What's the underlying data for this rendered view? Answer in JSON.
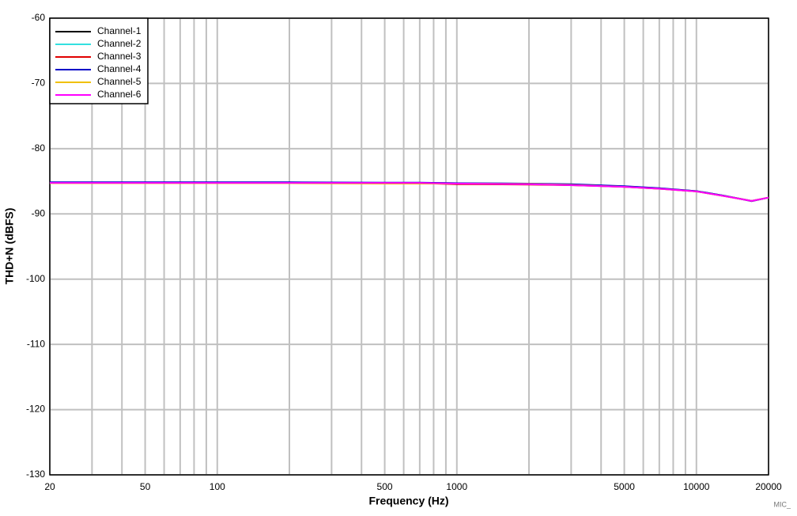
{
  "chart_data": {
    "type": "line",
    "xlabel": "Frequency (Hz)",
    "ylabel": "THD+N (dBFS)",
    "watermark": "MIC_",
    "xscale": "log",
    "xlim": [
      20,
      20000
    ],
    "ylim": [
      -130,
      -60
    ],
    "xticks": [
      20,
      50,
      100,
      500,
      1000,
      5000,
      10000,
      20000
    ],
    "xminor": [
      30,
      40,
      60,
      70,
      80,
      90,
      200,
      300,
      400,
      600,
      700,
      800,
      900,
      2000,
      3000,
      4000,
      6000,
      7000,
      8000,
      9000
    ],
    "yticks": [
      -130,
      -120,
      -110,
      -100,
      -90,
      -80,
      -70,
      -60
    ],
    "grid": true,
    "legend": "upper left",
    "x": [
      20,
      50,
      100,
      200,
      500,
      700,
      1000,
      2000,
      3000,
      5000,
      7000,
      10000,
      13000,
      17000,
      20000
    ],
    "series": [
      {
        "name": "Channel-1",
        "color": "#000000",
        "values": [
          -85.25,
          -85.25,
          -85.25,
          -85.25,
          -85.25,
          -85.25,
          -85.3,
          -85.4,
          -85.5,
          -85.8,
          -86.1,
          -86.5,
          -87.2,
          -88.0,
          -87.5
        ]
      },
      {
        "name": "Channel-2",
        "color": "#33e0e0",
        "values": [
          -85.25,
          -85.25,
          -85.25,
          -85.25,
          -85.25,
          -85.25,
          -85.3,
          -85.35,
          -85.5,
          -85.8,
          -86.1,
          -86.5,
          -87.2,
          -88.0,
          -87.5
        ]
      },
      {
        "name": "Channel-3",
        "color": "#e00000",
        "values": [
          -85.3,
          -85.3,
          -85.3,
          -85.3,
          -85.3,
          -85.3,
          -85.45,
          -85.5,
          -85.6,
          -85.85,
          -86.15,
          -86.55,
          -87.25,
          -88.0,
          -87.5
        ]
      },
      {
        "name": "Channel-4",
        "color": "#0000c8",
        "values": [
          -85.15,
          -85.15,
          -85.15,
          -85.15,
          -85.2,
          -85.2,
          -85.3,
          -85.35,
          -85.45,
          -85.75,
          -86.05,
          -86.5,
          -87.2,
          -88.05,
          -87.5
        ]
      },
      {
        "name": "Channel-5",
        "color": "#f0c000",
        "values": [
          -85.3,
          -85.3,
          -85.3,
          -85.3,
          -85.35,
          -85.35,
          -85.35,
          -85.4,
          -85.55,
          -85.85,
          -86.15,
          -86.55,
          -87.25,
          -88.0,
          -87.5
        ]
      },
      {
        "name": "Channel-6",
        "color": "#ff00ff",
        "values": [
          -85.25,
          -85.25,
          -85.25,
          -85.25,
          -85.25,
          -85.25,
          -85.35,
          -85.45,
          -85.6,
          -85.85,
          -86.15,
          -86.55,
          -87.25,
          -88.0,
          -87.5
        ]
      }
    ]
  }
}
